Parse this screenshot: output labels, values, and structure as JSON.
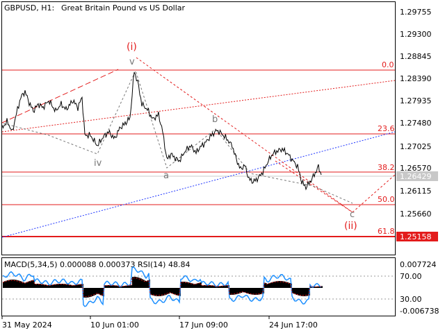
{
  "header": {
    "symbol": "GBPUSD, H1:",
    "description": "Great Britain Pound vs US Dollar"
  },
  "price_axis": {
    "ticks": [
      "1.29755",
      "1.29300",
      "1.28845",
      "1.28390",
      "1.27935",
      "1.27480",
      "1.27025",
      "1.26570",
      "1.26115",
      "1.25660"
    ],
    "current_price": "1.26429",
    "level_price": "1.25158"
  },
  "fib_labels": [
    "0.0",
    "23.6",
    "38.2",
    "50.0",
    "61.8"
  ],
  "wave_labels": {
    "wave_i": "(i)",
    "wave_ii": "(ii)",
    "wave_v": "v",
    "wave_iv": "iv",
    "wave_a": "a",
    "wave_b": "b",
    "wave_c": "c"
  },
  "indicator": {
    "label": "MACD(5,34,5) 0.000088 0.000373 RSI(14) 48.84",
    "ticks": [
      "0.007724",
      "70.00",
      "30.00",
      "-0.006738"
    ]
  },
  "time_axis": {
    "ticks": [
      "31 May 2024",
      "10 Jun 01:00",
      "17 Jun 09:00",
      "24 Jun 17:00"
    ]
  },
  "colors": {
    "background": "#ffffff",
    "price_line": "#000000",
    "fib_line": "#e31b1b",
    "wave_red": "#e31b1b",
    "wave_gray": "#777777",
    "trend_blue": "#1f35ff",
    "rsi_line": "#1e90ff",
    "macd_hist": "#000000",
    "current_price_box": "#c8c8c8",
    "level_box": "#e31b1b"
  }
}
